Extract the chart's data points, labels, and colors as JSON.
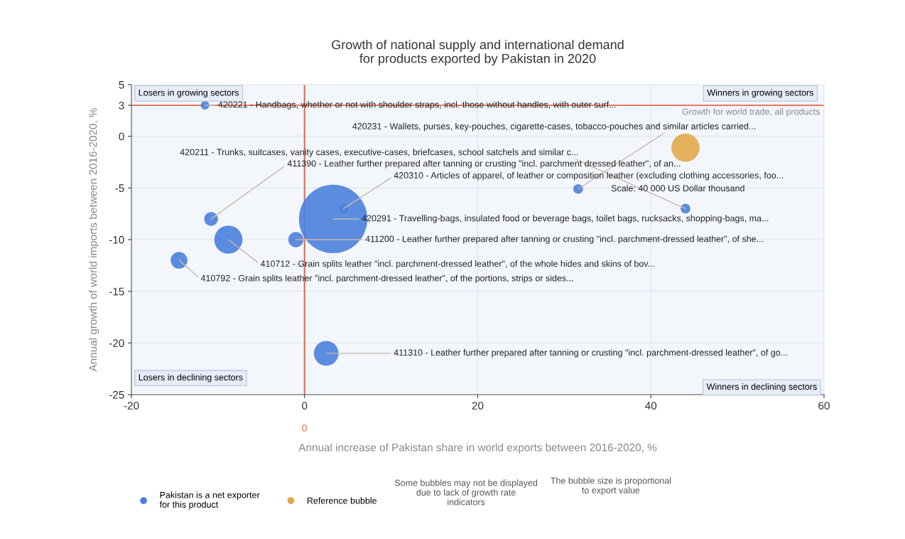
{
  "chart_data": {
    "type": "bubble",
    "title": "Growth of national supply and international demand\nfor products exported by Pakistan in 2020",
    "xlabel": "Annual increase of Pakistan share in world exports between 2016-2020, %",
    "ylabel": "Annual growth of world imports between 2016-2020, %",
    "series": [
      {
        "name": "Pakistan is a net exporter for this product",
        "color": "#4a7fdc",
        "x": [
          -11.5,
          31.6,
          44,
          -10.8,
          4.5,
          3.3,
          -1,
          -8.8,
          -14.5,
          2.5
        ],
        "values": [
          3,
          -5.1,
          -7,
          -8,
          -7,
          -8,
          -10,
          -10,
          -12,
          -21
        ],
        "sizes": [
          0.016,
          0.02,
          0.02,
          0.04,
          0.02,
          1,
          0.05,
          0.17,
          0.06,
          0.13
        ]
      },
      {
        "name": "Reference bubble",
        "color": "#e3a84e",
        "x": [
          44
        ],
        "values": [
          -1.1
        ],
        "sizes": [
          0.17
        ]
      }
    ],
    "xlim": [
      -20,
      60
    ],
    "xticks": [
      -20,
      0,
      20,
      40,
      60
    ],
    "ylim": [
      -25,
      5
    ],
    "yticks": [
      5,
      3,
      0,
      -5,
      -10,
      -15,
      -20,
      -25
    ],
    "grid": true,
    "legend": "bottom",
    "ref_lines": [
      {
        "axis": "x",
        "value": 0,
        "color": "#e8694a",
        "label": "0"
      },
      {
        "axis": "y",
        "value": 3,
        "color": "#e8694a",
        "label": "Growth for world trade, all products"
      }
    ],
    "annotations": [
      {
        "text": "420221 - Handbags, whether or not with shoulder straps, incl. those without handles, with outer surf...",
        "x": -11.5,
        "y": 3
      },
      {
        "text": "420231 - Wallets, purses, key-pouches, cigarette-cases, tobacco-pouches and similar articles carried...",
        "x": 31.6,
        "y": -5.1
      },
      {
        "text": "420211 - Trunks, suitcases, vanity cases, executive-cases, briefcases, school satchels and similar c...",
        "x": 44,
        "y": -7
      },
      {
        "text": "411390 - Leather further prepared after tanning or crusting \"incl. parchment dressed leather\", of an...",
        "x": -10.8,
        "y": -8
      },
      {
        "text": "420310 - Articles of apparel, of leather or composition leather (excluding clothing accessories, foo...",
        "x": 4.5,
        "y": -7
      },
      {
        "text": "420291 - Travelling-bags, insulated food or beverage bags, toilet bags, rucksacks, shopping-bags, ma...",
        "x": 3.3,
        "y": -8
      },
      {
        "text": "411200 - Leather further prepared after tanning or crusting \"incl. parchment-dressed leather\", of she...",
        "x": -1,
        "y": -10
      },
      {
        "text": "410712 - Grain splits leather \"incl. parchment-dressed leather\", of the whole hides and skins of bov...",
        "x": -8.8,
        "y": -10
      },
      {
        "text": "410792 - Grain splits leather \"incl. parchment-dressed leather\", of the portions, strips or sides...",
        "x": -14.5,
        "y": -12
      },
      {
        "text": "411310 - Leather further prepared after tanning or crusting \"incl. parchment-dressed leather\", of go...",
        "x": 2.5,
        "y": -21
      },
      "Losers in growing sectors",
      "Winners in growing sectors",
      "Losers in declining sectors",
      "Winners in declining sectors",
      "Scale: 40 000 US Dollar thousand",
      "Some bubbles may not be displayed\ndue to lack of growth rate\nindicators",
      "The bubble size is proportional\nto export value"
    ]
  }
}
